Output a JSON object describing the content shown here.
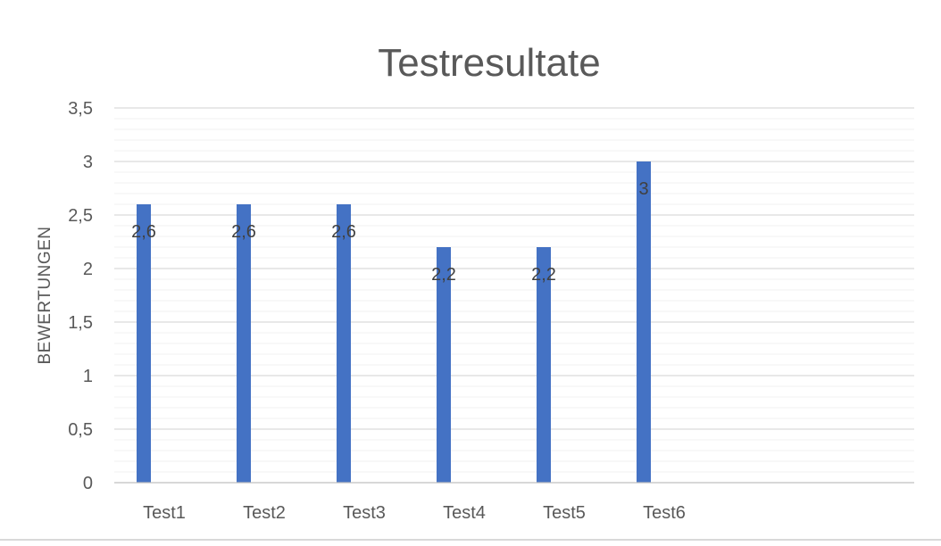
{
  "chart_data": {
    "type": "bar",
    "title": "Testresultate",
    "ylabel": "BEWERTUNGEN",
    "xlabel": "",
    "categories": [
      "Test1",
      "Test2",
      "Test3",
      "Test4",
      "Test5",
      "Test6"
    ],
    "values": [
      2.6,
      2.6,
      2.6,
      2.2,
      2.2,
      3
    ],
    "data_labels": [
      "2,6",
      "2,6",
      "2,6",
      "2,2",
      "2,2",
      "3"
    ],
    "ylim": [
      0,
      3.5
    ],
    "y_ticks": [
      0,
      0.5,
      1,
      1.5,
      2,
      2.5,
      3,
      3.5
    ],
    "y_tick_labels": [
      "0",
      "0,5",
      "1",
      "1,5",
      "2",
      "2,5",
      "3",
      "3,5"
    ],
    "minor_gridlines": true,
    "major_gridlines": true,
    "legend": "none",
    "bar_color": "#4472C4"
  }
}
